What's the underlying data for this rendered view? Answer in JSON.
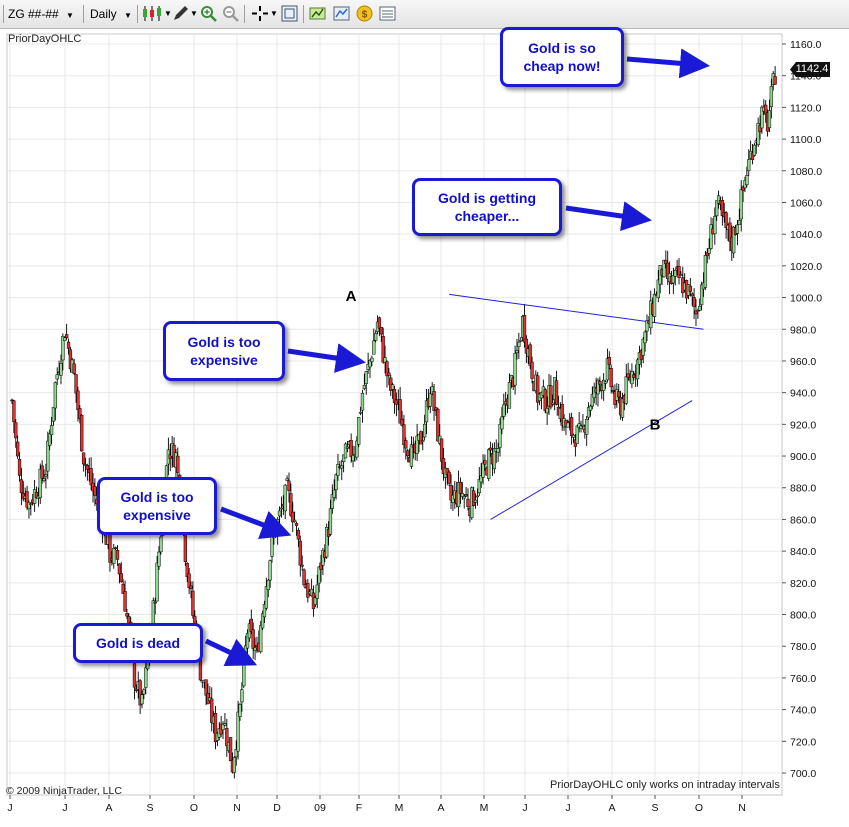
{
  "toolbar": {
    "instrument": "ZG ##-##",
    "interval": "Daily",
    "icons": [
      "candlestick-icon",
      "draw-pencil-icon",
      "zoom-in-icon",
      "zoom-out-icon",
      "crosshair-icon",
      "data-box-icon",
      "indicators-icon",
      "strategies-icon",
      "coin-icon",
      "properties-icon"
    ]
  },
  "chart_data": {
    "type": "candlestick",
    "indicator_label": "PriorDayOHLC",
    "copyright": "© 2009 NinjaTrader, LLC",
    "footer_note": "PriorDayOHLC only works on intraday intervals",
    "last_price": "1142.4",
    "ylim": [
      695,
      1165
    ],
    "y_ticks": [
      "700.0",
      "720.0",
      "740.0",
      "760.0",
      "780.0",
      "800.0",
      "820.0",
      "840.0",
      "860.0",
      "880.0",
      "900.0",
      "920.0",
      "940.0",
      "960.0",
      "980.0",
      "1000.0",
      "1020.0",
      "1040.0",
      "1060.0",
      "1080.0",
      "1100.0",
      "1120.0",
      "1140.0",
      "1160.0"
    ],
    "x_ticks": [
      "J",
      "J",
      "A",
      "S",
      "O",
      "N",
      "D",
      "09",
      "F",
      "M",
      "A",
      "M",
      "J",
      "J",
      "A",
      "S",
      "O",
      "N"
    ],
    "colors": {
      "up": "#90d890",
      "down": "#e03030",
      "trendline": "#2020e0",
      "callout_border": "#1a1ad6",
      "callout_text": "#1010c8"
    },
    "path_anchors": [
      [
        0,
        935
      ],
      [
        4,
        885
      ],
      [
        9,
        870
      ],
      [
        14,
        882
      ],
      [
        18,
        892
      ],
      [
        23,
        945
      ],
      [
        28,
        980
      ],
      [
        33,
        950
      ],
      [
        38,
        900
      ],
      [
        43,
        878
      ],
      [
        48,
        860
      ],
      [
        52,
        838
      ],
      [
        56,
        835
      ],
      [
        60,
        808
      ],
      [
        65,
        760
      ],
      [
        69,
        742
      ],
      [
        74,
        790
      ],
      [
        78,
        840
      ],
      [
        83,
        905
      ],
      [
        87,
        900
      ],
      [
        92,
        840
      ],
      [
        96,
        800
      ],
      [
        100,
        765
      ],
      [
        104,
        745
      ],
      [
        108,
        725
      ],
      [
        112,
        735
      ],
      [
        117,
        705
      ],
      [
        121,
        740
      ],
      [
        125,
        790
      ],
      [
        130,
        775
      ],
      [
        134,
        812
      ],
      [
        138,
        845
      ],
      [
        142,
        862
      ],
      [
        146,
        878
      ],
      [
        150,
        860
      ],
      [
        155,
        822
      ],
      [
        160,
        805
      ],
      [
        164,
        832
      ],
      [
        168,
        855
      ],
      [
        172,
        885
      ],
      [
        177,
        900
      ],
      [
        182,
        905
      ],
      [
        186,
        940
      ],
      [
        190,
        960
      ],
      [
        194,
        985
      ],
      [
        197,
        965
      ],
      [
        200,
        945
      ],
      [
        205,
        930
      ],
      [
        209,
        910
      ],
      [
        213,
        898
      ],
      [
        218,
        915
      ],
      [
        222,
        945
      ],
      [
        226,
        915
      ],
      [
        230,
        885
      ],
      [
        233,
        872
      ],
      [
        238,
        878
      ],
      [
        243,
        870
      ],
      [
        248,
        882
      ],
      [
        253,
        898
      ],
      [
        258,
        905
      ],
      [
        262,
        935
      ],
      [
        266,
        950
      ],
      [
        271,
        985
      ],
      [
        275,
        960
      ],
      [
        279,
        938
      ],
      [
        284,
        935
      ],
      [
        288,
        942
      ],
      [
        293,
        920
      ],
      [
        297,
        915
      ],
      [
        302,
        912
      ],
      [
        306,
        932
      ],
      [
        311,
        943
      ],
      [
        316,
        955
      ],
      [
        320,
        935
      ],
      [
        323,
        932
      ],
      [
        328,
        950
      ],
      [
        332,
        960
      ],
      [
        337,
        980
      ],
      [
        341,
        1000
      ],
      [
        345,
        1018
      ],
      [
        349,
        1010
      ],
      [
        354,
        1012
      ],
      [
        359,
        1003
      ],
      [
        363,
        990
      ],
      [
        368,
        1020
      ],
      [
        371,
        1040
      ],
      [
        374,
        1060
      ],
      [
        378,
        1045
      ],
      [
        382,
        1035
      ],
      [
        386,
        1055
      ],
      [
        390,
        1080
      ],
      [
        394,
        1100
      ],
      [
        398,
        1115
      ],
      [
        401,
        1110
      ],
      [
        405,
        1142
      ]
    ],
    "annotations": [
      {
        "label": "A",
        "price": 1001
      },
      {
        "label": "B",
        "price": 920
      }
    ],
    "trendlines": [
      {
        "from": [
          232,
          1002
        ],
        "to": [
          367,
          980
        ]
      },
      {
        "from": [
          254,
          860
        ],
        "to": [
          361,
          935
        ]
      }
    ],
    "callouts": [
      {
        "text": "Gold is so\ncheap now!"
      },
      {
        "text": "Gold is getting\ncheaper..."
      },
      {
        "text": "Gold is too\nexpensive"
      },
      {
        "text": "Gold is too\nexpensive"
      },
      {
        "text": "Gold is dead"
      }
    ]
  }
}
